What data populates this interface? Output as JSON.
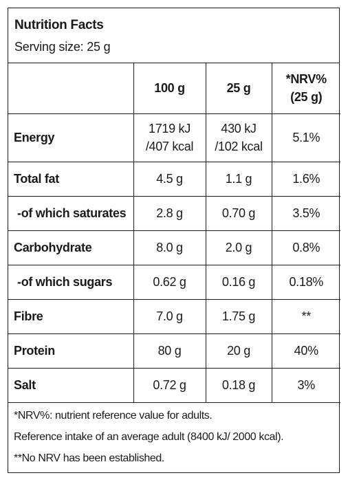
{
  "header": {
    "title": "Nutrition Facts",
    "serving": "Serving size: 25 g"
  },
  "columns": {
    "per100": "100 g",
    "per25": "25 g",
    "nrv_line1": "*NRV%",
    "nrv_line2": "(25 g)"
  },
  "rows": [
    {
      "name": "Energy",
      "per100_l1": "1719 kJ",
      "per100_l2": "/407 kcal",
      "per25_l1": "430 kJ",
      "per25_l2": "/102 kcal",
      "nrv": "5.1%"
    },
    {
      "name": "Total fat",
      "per100": "4.5 g",
      "per25": "1.1 g",
      "nrv": "1.6%"
    },
    {
      "name": "-of which saturates",
      "per100": "2.8 g",
      "per25": "0.70 g",
      "nrv": "3.5%"
    },
    {
      "name": "Carbohydrate",
      "per100": "8.0 g",
      "per25": "2.0 g",
      "nrv": "0.8%"
    },
    {
      "name": "-of which sugars",
      "per100": "0.62 g",
      "per25": "0.16 g",
      "nrv": "0.18%"
    },
    {
      "name": "Fibre",
      "per100": "7.0 g",
      "per25": "1.75 g",
      "nrv": "**"
    },
    {
      "name": "Protein",
      "per100": "80 g",
      "per25": "20 g",
      "nrv": "40%"
    },
    {
      "name": "Salt",
      "per100": "0.72 g",
      "per25": "0.18 g",
      "nrv": "3%"
    }
  ],
  "footer": {
    "note1": "*NRV%: nutrient reference value for adults.",
    "note2": "Reference intake of an average adult (8400 kJ/ 2000 kcal).",
    "note3": "**No NRV has been established."
  }
}
